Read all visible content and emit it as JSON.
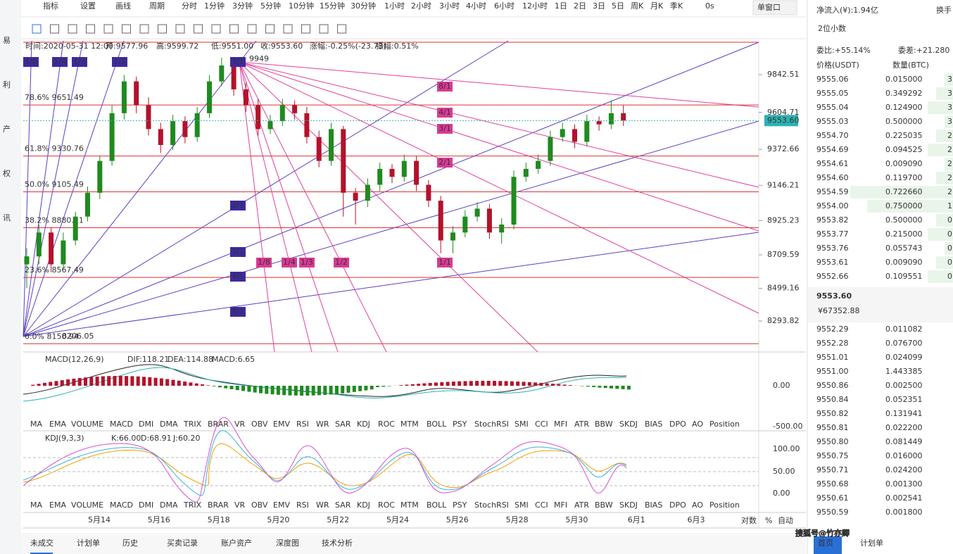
{
  "sidebar": [
    "易",
    "利",
    "产",
    "权",
    "讯"
  ],
  "toolbar": {
    "tools": [
      "指标",
      "设置",
      "画线"
    ],
    "period_label": "周期",
    "periods": [
      "分时",
      "1分钟",
      "3分钟",
      "5分钟",
      "10分钟",
      "15分钟",
      "30分钟",
      "1小时",
      "2小时",
      "3小时",
      "4小时",
      "6小时",
      "12小时",
      "1日",
      "2日",
      "3日",
      "5日",
      "周K",
      "月K",
      "季K"
    ],
    "active_period": "4小时",
    "timer": "0s",
    "window": "单窗口"
  },
  "info": {
    "time": "时间:2020-05-31 12:00",
    "open": "开:9577.96",
    "high": "高:9599.72",
    "low": "低:9551.00",
    "close": "收:9553.60",
    "change": "涨幅:-0.25%(-23.73)",
    "amplitude": "振幅:0.51%"
  },
  "chart": {
    "ylim": [
      8099,
      10055
    ],
    "yticks": [
      {
        "value": 9842.51,
        "label": "9842.51"
      },
      {
        "value": 9604.71,
        "label": "9604.71"
      },
      {
        "value": 9372.66,
        "label": "9372.66"
      },
      {
        "value": 9146.21,
        "label": "9146.21"
      },
      {
        "value": 8925.23,
        "label": "8925.23"
      },
      {
        "value": 8709.59,
        "label": "8709.59"
      },
      {
        "value": 8499.16,
        "label": "8499.16"
      },
      {
        "value": 8293.82,
        "label": "8293.82"
      }
    ],
    "last_price": {
      "value": 9553.6,
      "label": "9553.60"
    },
    "fib": [
      {
        "value": 9651.49,
        "label": "78.6% 9651.49"
      },
      {
        "value": 9330.76,
        "label": "61.8% 9330.76"
      },
      {
        "value": 9105.49,
        "label": "50.0% 9105.49"
      },
      {
        "value": 8880.21,
        "label": "38.2% 8880.21"
      },
      {
        "value": 8567.49,
        "label": "23.6% 8567.49"
      },
      {
        "value": 8150.94,
        "label": "0.0% 8150.94"
      }
    ],
    "peak_label": "9949",
    "low_label": "8206.05",
    "gann_up": [
      "1/8",
      "1/4",
      "1/3",
      "1/2",
      "1/1",
      "2/1",
      "3/1",
      "4/1",
      "8/1"
    ],
    "gann_down": [
      "8/1",
      "4/1",
      "3/1",
      "2/1",
      "1/1",
      "1/2",
      "1/3",
      "1/4",
      "1/8"
    ],
    "up_color": "#1f8a1f",
    "down_color": "#b3122b",
    "candles": [
      [
        8650,
        8750,
        8500,
        8700
      ],
      [
        8700,
        8900,
        8650,
        8850
      ],
      [
        8850,
        8880,
        8600,
        8650
      ],
      [
        8650,
        8850,
        8620,
        8800
      ],
      [
        8800,
        8980,
        8770,
        8950
      ],
      [
        8950,
        9140,
        8920,
        9100
      ],
      [
        9100,
        9330,
        9060,
        9300
      ],
      [
        9300,
        9650,
        9270,
        9600
      ],
      [
        9600,
        9840,
        9560,
        9800
      ],
      [
        9800,
        9830,
        9600,
        9650
      ],
      [
        9650,
        9700,
        9460,
        9500
      ],
      [
        9500,
        9540,
        9350,
        9400
      ],
      [
        9400,
        9590,
        9370,
        9550
      ],
      [
        9550,
        9580,
        9410,
        9450
      ],
      [
        9450,
        9640,
        9420,
        9600
      ],
      [
        9600,
        9840,
        9570,
        9800
      ],
      [
        9800,
        9949,
        9770,
        9900
      ],
      [
        9900,
        9930,
        9710,
        9750
      ],
      [
        9750,
        9790,
        9610,
        9650
      ],
      [
        9650,
        9690,
        9460,
        9500
      ],
      [
        9500,
        9590,
        9470,
        9550
      ],
      [
        9550,
        9690,
        9520,
        9650
      ],
      [
        9650,
        9680,
        9560,
        9600
      ],
      [
        9600,
        9640,
        9410,
        9450
      ],
      [
        9450,
        9490,
        9260,
        9300
      ],
      [
        9300,
        9540,
        9270,
        9500
      ],
      [
        9500,
        9520,
        8950,
        9100
      ],
      [
        9100,
        9130,
        8900,
        9050
      ],
      [
        9050,
        9190,
        9010,
        9150
      ],
      [
        9150,
        9290,
        9110,
        9250
      ],
      [
        9250,
        9280,
        9160,
        9200
      ],
      [
        9200,
        9340,
        9170,
        9300
      ],
      [
        9300,
        9330,
        9110,
        9150
      ],
      [
        9150,
        9180,
        9010,
        9050
      ],
      [
        9050,
        9080,
        8720,
        8800
      ],
      [
        8800,
        8890,
        8720,
        8850
      ],
      [
        8850,
        8990,
        8820,
        8950
      ],
      [
        8950,
        9040,
        8920,
        9000
      ],
      [
        9000,
        9030,
        8810,
        8850
      ],
      [
        8850,
        8940,
        8780,
        8900
      ],
      [
        8900,
        9240,
        8870,
        9200
      ],
      [
        9200,
        9290,
        9170,
        9250
      ],
      [
        9250,
        9340,
        9220,
        9300
      ],
      [
        9300,
        9490,
        9270,
        9450
      ],
      [
        9450,
        9540,
        9420,
        9500
      ],
      [
        9500,
        9530,
        9380,
        9420
      ],
      [
        9420,
        9590,
        9390,
        9550
      ],
      [
        9550,
        9580,
        9490,
        9530
      ],
      [
        9530,
        9680,
        9500,
        9600
      ],
      [
        9600,
        9650,
        9520,
        9553.6
      ]
    ]
  },
  "macd": {
    "title": "MACD(12,26,9)",
    "dif": "DIF:118.21",
    "dea": "DEA:114.88",
    "macd": "MACD:6.65",
    "ticks": [
      "0.00",
      "-500.00"
    ],
    "active": "MACD",
    "disabled": "KDJ"
  },
  "kdj": {
    "title": "KDJ(9,3,3)",
    "k": "K:66.00",
    "d": "D:68.91",
    "j": "J:60.20",
    "ticks": [
      "100.00",
      "50.00",
      "0.00"
    ],
    "active": "KDJ",
    "disabled": "MACD"
  },
  "indicators": [
    "MA",
    "EMA",
    "VOLUME",
    "MACD",
    "DMI",
    "DMA",
    "TRIX",
    "BRAR",
    "VR",
    "OBV",
    "EMV",
    "RSI",
    "WR",
    "SAR",
    "KDJ",
    "ROC",
    "MTM",
    "BOLL",
    "PSY",
    "StochRSI",
    "SMI",
    "CCI",
    "MFI",
    "ATR",
    "BBW",
    "SKDJ",
    "BIAS",
    "DPO",
    "AO",
    "Position"
  ],
  "dates": [
    "5月14",
    "5月16",
    "5月18",
    "5月20",
    "5月22",
    "5月24",
    "5月26",
    "5月28",
    "5月30",
    "6月1",
    "6月3"
  ],
  "axis_options": [
    "对数",
    "%",
    "自动"
  ],
  "bottom_tabs": [
    "未成交",
    "计划单",
    "历史",
    "买卖记录",
    "账户资产",
    "深度图",
    "技术分析"
  ],
  "panel": {
    "net_inflow": "净流入(¥):1.94亿",
    "turnover": "换手",
    "decimals": "2位小数",
    "ratio": "委比:+55.14%",
    "diff": "委差:+21.280",
    "price_header": "价格(USDT)",
    "qty_header": "数量(BTC)",
    "asks": [
      [
        "9555.06",
        "0.015000",
        "3"
      ],
      [
        "9555.05",
        "0.349292",
        "3"
      ],
      [
        "9555.04",
        "0.124900",
        "3"
      ],
      [
        "9555.03",
        "0.500000",
        "3"
      ],
      [
        "9554.70",
        "0.225035",
        "2"
      ],
      [
        "9554.69",
        "0.094525",
        "2"
      ],
      [
        "9554.61",
        "0.009090",
        "2"
      ],
      [
        "9554.60",
        "0.119700",
        "2"
      ],
      [
        "9554.59",
        "0.722660",
        "2"
      ],
      [
        "9554.00",
        "0.750000",
        "1"
      ],
      [
        "9553.82",
        "0.500000",
        "0"
      ],
      [
        "9553.77",
        "0.215000",
        "0"
      ],
      [
        "9553.76",
        "0.055743",
        "0"
      ],
      [
        "9553.61",
        "0.009090",
        "0"
      ],
      [
        "9552.66",
        "0.109551",
        "0"
      ]
    ],
    "last": "9553.60",
    "cny": "¥67352.88",
    "bids": [
      [
        "9552.29",
        "0.011082"
      ],
      [
        "9552.28",
        "0.076700"
      ],
      [
        "9551.01",
        "0.024099"
      ],
      [
        "9551.00",
        "1.443385"
      ],
      [
        "9550.86",
        "0.002500"
      ],
      [
        "9550.84",
        "0.052351"
      ],
      [
        "9550.82",
        "0.131941"
      ],
      [
        "9550.81",
        "0.022200"
      ],
      [
        "9550.80",
        "0.081449"
      ],
      [
        "9550.75",
        "0.016000"
      ],
      [
        "9550.71",
        "0.024200"
      ],
      [
        "9550.68",
        "0.001300"
      ],
      [
        "9550.61",
        "0.002541"
      ],
      [
        "9550.59",
        "0.001800"
      ]
    ],
    "nav": [
      "首页",
      "计划单"
    ],
    "watermark": "搜狐号@竹亦卿"
  }
}
